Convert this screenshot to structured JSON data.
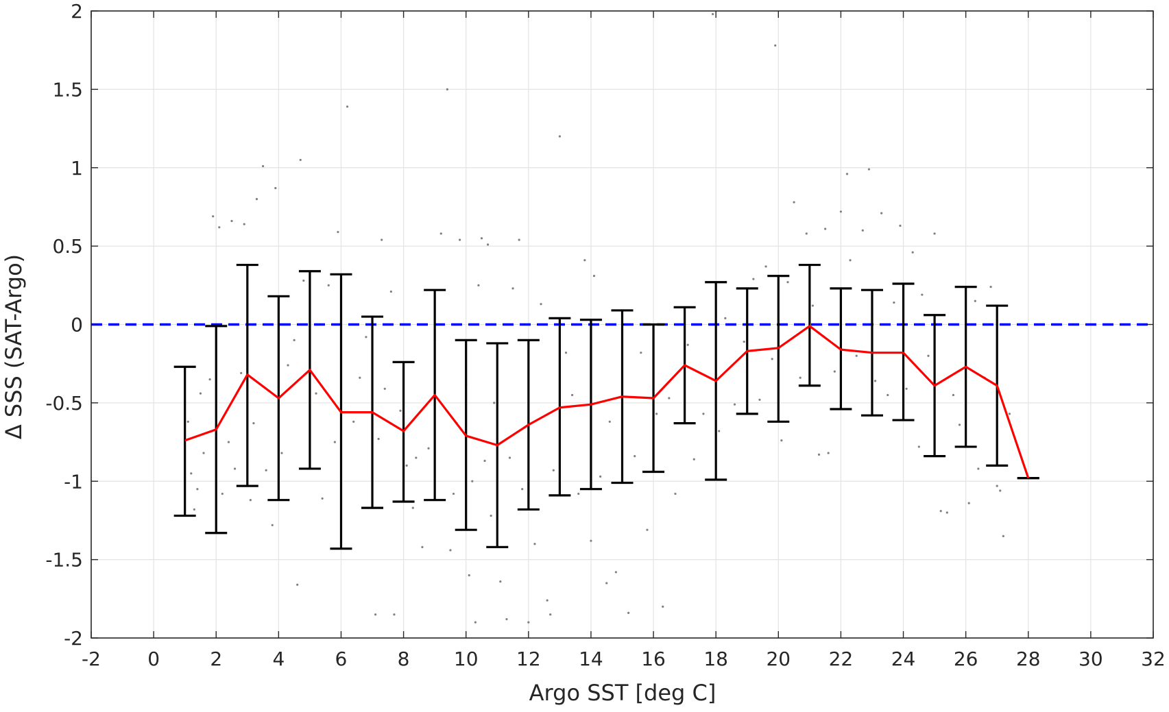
{
  "chart_data": {
    "type": "scatter",
    "xlabel": "Argo SST [deg C]",
    "ylabel": "Δ SSS (SAT-Argo)",
    "xlim": [
      -2,
      32
    ],
    "ylim": [
      -2,
      2
    ],
    "xticks": [
      "-2",
      "0",
      "2",
      "4",
      "6",
      "8",
      "10",
      "12",
      "14",
      "16",
      "18",
      "20",
      "22",
      "24",
      "26",
      "28",
      "30",
      "32"
    ],
    "yticks": [
      "-2",
      "-1.5",
      "-1",
      "-0.5",
      "0",
      "0.5",
      "1",
      "1.5",
      "2"
    ],
    "grid": true,
    "reference_line": {
      "y": 0,
      "style": "dashed",
      "color": "#0000ff"
    },
    "mean_line": {
      "color": "#ff0000",
      "x": [
        1,
        2,
        3,
        4,
        5,
        6,
        7,
        8,
        9,
        10,
        11,
        12,
        13,
        14,
        15,
        16,
        17,
        18,
        19,
        20,
        21,
        22,
        23,
        24,
        25,
        26,
        27,
        28
      ],
      "y": [
        -0.74,
        -0.67,
        -0.32,
        -0.47,
        -0.29,
        -0.56,
        -0.56,
        -0.68,
        -0.45,
        -0.71,
        -0.77,
        -0.64,
        -0.53,
        -0.51,
        -0.46,
        -0.47,
        -0.26,
        -0.36,
        -0.17,
        -0.15,
        -0.01,
        -0.16,
        -0.18,
        -0.18,
        -0.39,
        -0.27,
        -0.39,
        -0.98
      ]
    },
    "error_bars": {
      "color": "#000000",
      "x": [
        1,
        2,
        3,
        4,
        5,
        6,
        7,
        8,
        9,
        10,
        11,
        12,
        13,
        14,
        15,
        16,
        17,
        18,
        19,
        20,
        21,
        22,
        23,
        24,
        25,
        26,
        27,
        28
      ],
      "upper": [
        -0.27,
        -0.01,
        0.38,
        0.18,
        0.34,
        0.32,
        0.05,
        -0.24,
        0.22,
        -0.1,
        -0.12,
        -0.1,
        0.04,
        0.03,
        0.09,
        0.0,
        0.11,
        0.27,
        0.23,
        0.31,
        0.38,
        0.23,
        0.22,
        0.26,
        0.06,
        0.24,
        0.12,
        -0.98
      ],
      "lower": [
        -1.22,
        -1.33,
        -1.03,
        -1.12,
        -0.92,
        -1.43,
        -1.17,
        -1.13,
        -1.12,
        -1.31,
        -1.42,
        -1.18,
        -1.09,
        -1.05,
        -1.01,
        -0.94,
        -0.63,
        -0.99,
        -0.57,
        -0.62,
        -0.39,
        -0.54,
        -0.58,
        -0.61,
        -0.84,
        -0.78,
        -0.9,
        -0.98
      ]
    },
    "scatter": {
      "color": "#808080",
      "points": [
        [
          1.2,
          -0.95
        ],
        [
          1.3,
          -1.18
        ],
        [
          1.5,
          -0.44
        ],
        [
          1.1,
          -0.62
        ],
        [
          1.4,
          -1.05
        ],
        [
          1.6,
          -0.82
        ],
        [
          1.9,
          0.69
        ],
        [
          2.1,
          0.62
        ],
        [
          2.5,
          0.66
        ],
        [
          1.8,
          -0.35
        ],
        [
          2.2,
          -1.08
        ],
        [
          2.4,
          -0.75
        ],
        [
          2.6,
          -0.92
        ],
        [
          2.9,
          0.64
        ],
        [
          3.1,
          -1.12
        ],
        [
          3.3,
          0.8
        ],
        [
          3.5,
          1.01
        ],
        [
          2.8,
          -0.31
        ],
        [
          3.6,
          -0.93
        ],
        [
          3.2,
          -0.63
        ],
        [
          3.9,
          0.87
        ],
        [
          4.1,
          -0.82
        ],
        [
          4.3,
          -0.26
        ],
        [
          3.8,
          -1.28
        ],
        [
          4.5,
          -0.1
        ],
        [
          4.8,
          0.28
        ],
        [
          4.7,
          1.05
        ],
        [
          5.2,
          -0.44
        ],
        [
          5.4,
          -1.11
        ],
        [
          4.6,
          -1.66
        ],
        [
          5.6,
          0.25
        ],
        [
          5.8,
          -0.75
        ],
        [
          6.2,
          1.39
        ],
        [
          6.4,
          -0.62
        ],
        [
          6.6,
          -0.34
        ],
        [
          5.9,
          0.59
        ],
        [
          6.8,
          -0.08
        ],
        [
          7.2,
          -0.73
        ],
        [
          7.4,
          -0.41
        ],
        [
          7.3,
          0.54
        ],
        [
          7.1,
          -1.85
        ],
        [
          7.7,
          -1.85
        ],
        [
          7.9,
          -0.55
        ],
        [
          8.1,
          -0.9
        ],
        [
          8.3,
          -1.17
        ],
        [
          8.4,
          -0.85
        ],
        [
          7.6,
          0.21
        ],
        [
          8.6,
          -1.42
        ],
        [
          8.8,
          -0.79
        ],
        [
          9.0,
          -0.1
        ],
        [
          9.2,
          0.58
        ],
        [
          9.4,
          1.5
        ],
        [
          9.6,
          -1.08
        ],
        [
          9.5,
          -1.44
        ],
        [
          9.7,
          -0.63
        ],
        [
          9.8,
          0.54
        ],
        [
          10.0,
          -0.38
        ],
        [
          10.1,
          -1.6
        ],
        [
          10.3,
          -1.9
        ],
        [
          10.2,
          -1.0
        ],
        [
          10.4,
          0.25
        ],
        [
          10.6,
          -0.87
        ],
        [
          10.5,
          0.55
        ],
        [
          10.8,
          -1.22
        ],
        [
          10.9,
          -0.5
        ],
        [
          10.7,
          0.51
        ],
        [
          11.1,
          -1.64
        ],
        [
          11.3,
          -1.88
        ],
        [
          11.5,
          0.23
        ],
        [
          11.4,
          -0.85
        ],
        [
          11.7,
          0.54
        ],
        [
          11.8,
          -1.05
        ],
        [
          12.0,
          -1.9
        ],
        [
          12.2,
          -1.4
        ],
        [
          12.4,
          0.13
        ],
        [
          12.6,
          -1.76
        ],
        [
          12.8,
          -0.93
        ],
        [
          12.7,
          -1.85
        ],
        [
          13.0,
          1.2
        ],
        [
          13.2,
          -0.18
        ],
        [
          13.4,
          -0.45
        ],
        [
          13.6,
          -1.08
        ],
        [
          13.8,
          0.41
        ],
        [
          14.0,
          -1.38
        ],
        [
          14.1,
          0.31
        ],
        [
          14.3,
          -0.97
        ],
        [
          14.5,
          -1.65
        ],
        [
          14.6,
          -0.62
        ],
        [
          14.8,
          -1.58
        ],
        [
          15.2,
          -1.84
        ],
        [
          15.4,
          -0.84
        ],
        [
          15.6,
          -0.18
        ],
        [
          15.8,
          -1.31
        ],
        [
          16.1,
          -0.57
        ],
        [
          16.3,
          -1.8
        ],
        [
          16.5,
          -0.47
        ],
        [
          16.7,
          -1.08
        ],
        [
          17.1,
          -0.13
        ],
        [
          17.3,
          -0.86
        ],
        [
          17.6,
          -0.57
        ],
        [
          17.9,
          1.98
        ],
        [
          18.1,
          -0.68
        ],
        [
          18.3,
          0.04
        ],
        [
          18.6,
          -0.51
        ],
        [
          18.9,
          -0.11
        ],
        [
          19.2,
          0.29
        ],
        [
          19.4,
          -0.48
        ],
        [
          19.6,
          0.37
        ],
        [
          19.8,
          -0.22
        ],
        [
          20.1,
          -0.74
        ],
        [
          19.9,
          1.78
        ],
        [
          20.3,
          0.27
        ],
        [
          20.5,
          0.78
        ],
        [
          20.7,
          -0.34
        ],
        [
          20.9,
          0.58
        ],
        [
          21.1,
          0.12
        ],
        [
          21.3,
          -0.83
        ],
        [
          21.5,
          0.61
        ],
        [
          21.6,
          -0.82
        ],
        [
          21.8,
          -0.3
        ],
        [
          22.0,
          0.72
        ],
        [
          22.2,
          0.96
        ],
        [
          22.3,
          0.41
        ],
        [
          22.5,
          -0.2
        ],
        [
          22.7,
          0.6
        ],
        [
          22.9,
          0.99
        ],
        [
          23.1,
          -0.36
        ],
        [
          23.3,
          0.71
        ],
        [
          23.5,
          -0.45
        ],
        [
          23.7,
          0.14
        ],
        [
          23.9,
          0.63
        ],
        [
          24.1,
          -0.41
        ],
        [
          24.3,
          0.46
        ],
        [
          24.5,
          -0.78
        ],
        [
          24.6,
          0.19
        ],
        [
          24.8,
          -0.2
        ],
        [
          25.0,
          0.58
        ],
        [
          25.2,
          -1.19
        ],
        [
          25.4,
          -1.2
        ],
        [
          25.6,
          -0.45
        ],
        [
          25.8,
          -0.64
        ],
        [
          26.1,
          -1.14
        ],
        [
          26.3,
          0.15
        ],
        [
          26.6,
          -0.34
        ],
        [
          26.8,
          0.24
        ],
        [
          27.0,
          -1.03
        ],
        [
          27.2,
          -1.35
        ],
        [
          27.4,
          -0.57
        ],
        [
          27.1,
          -1.06
        ],
        [
          26.4,
          -0.92
        ]
      ]
    }
  }
}
